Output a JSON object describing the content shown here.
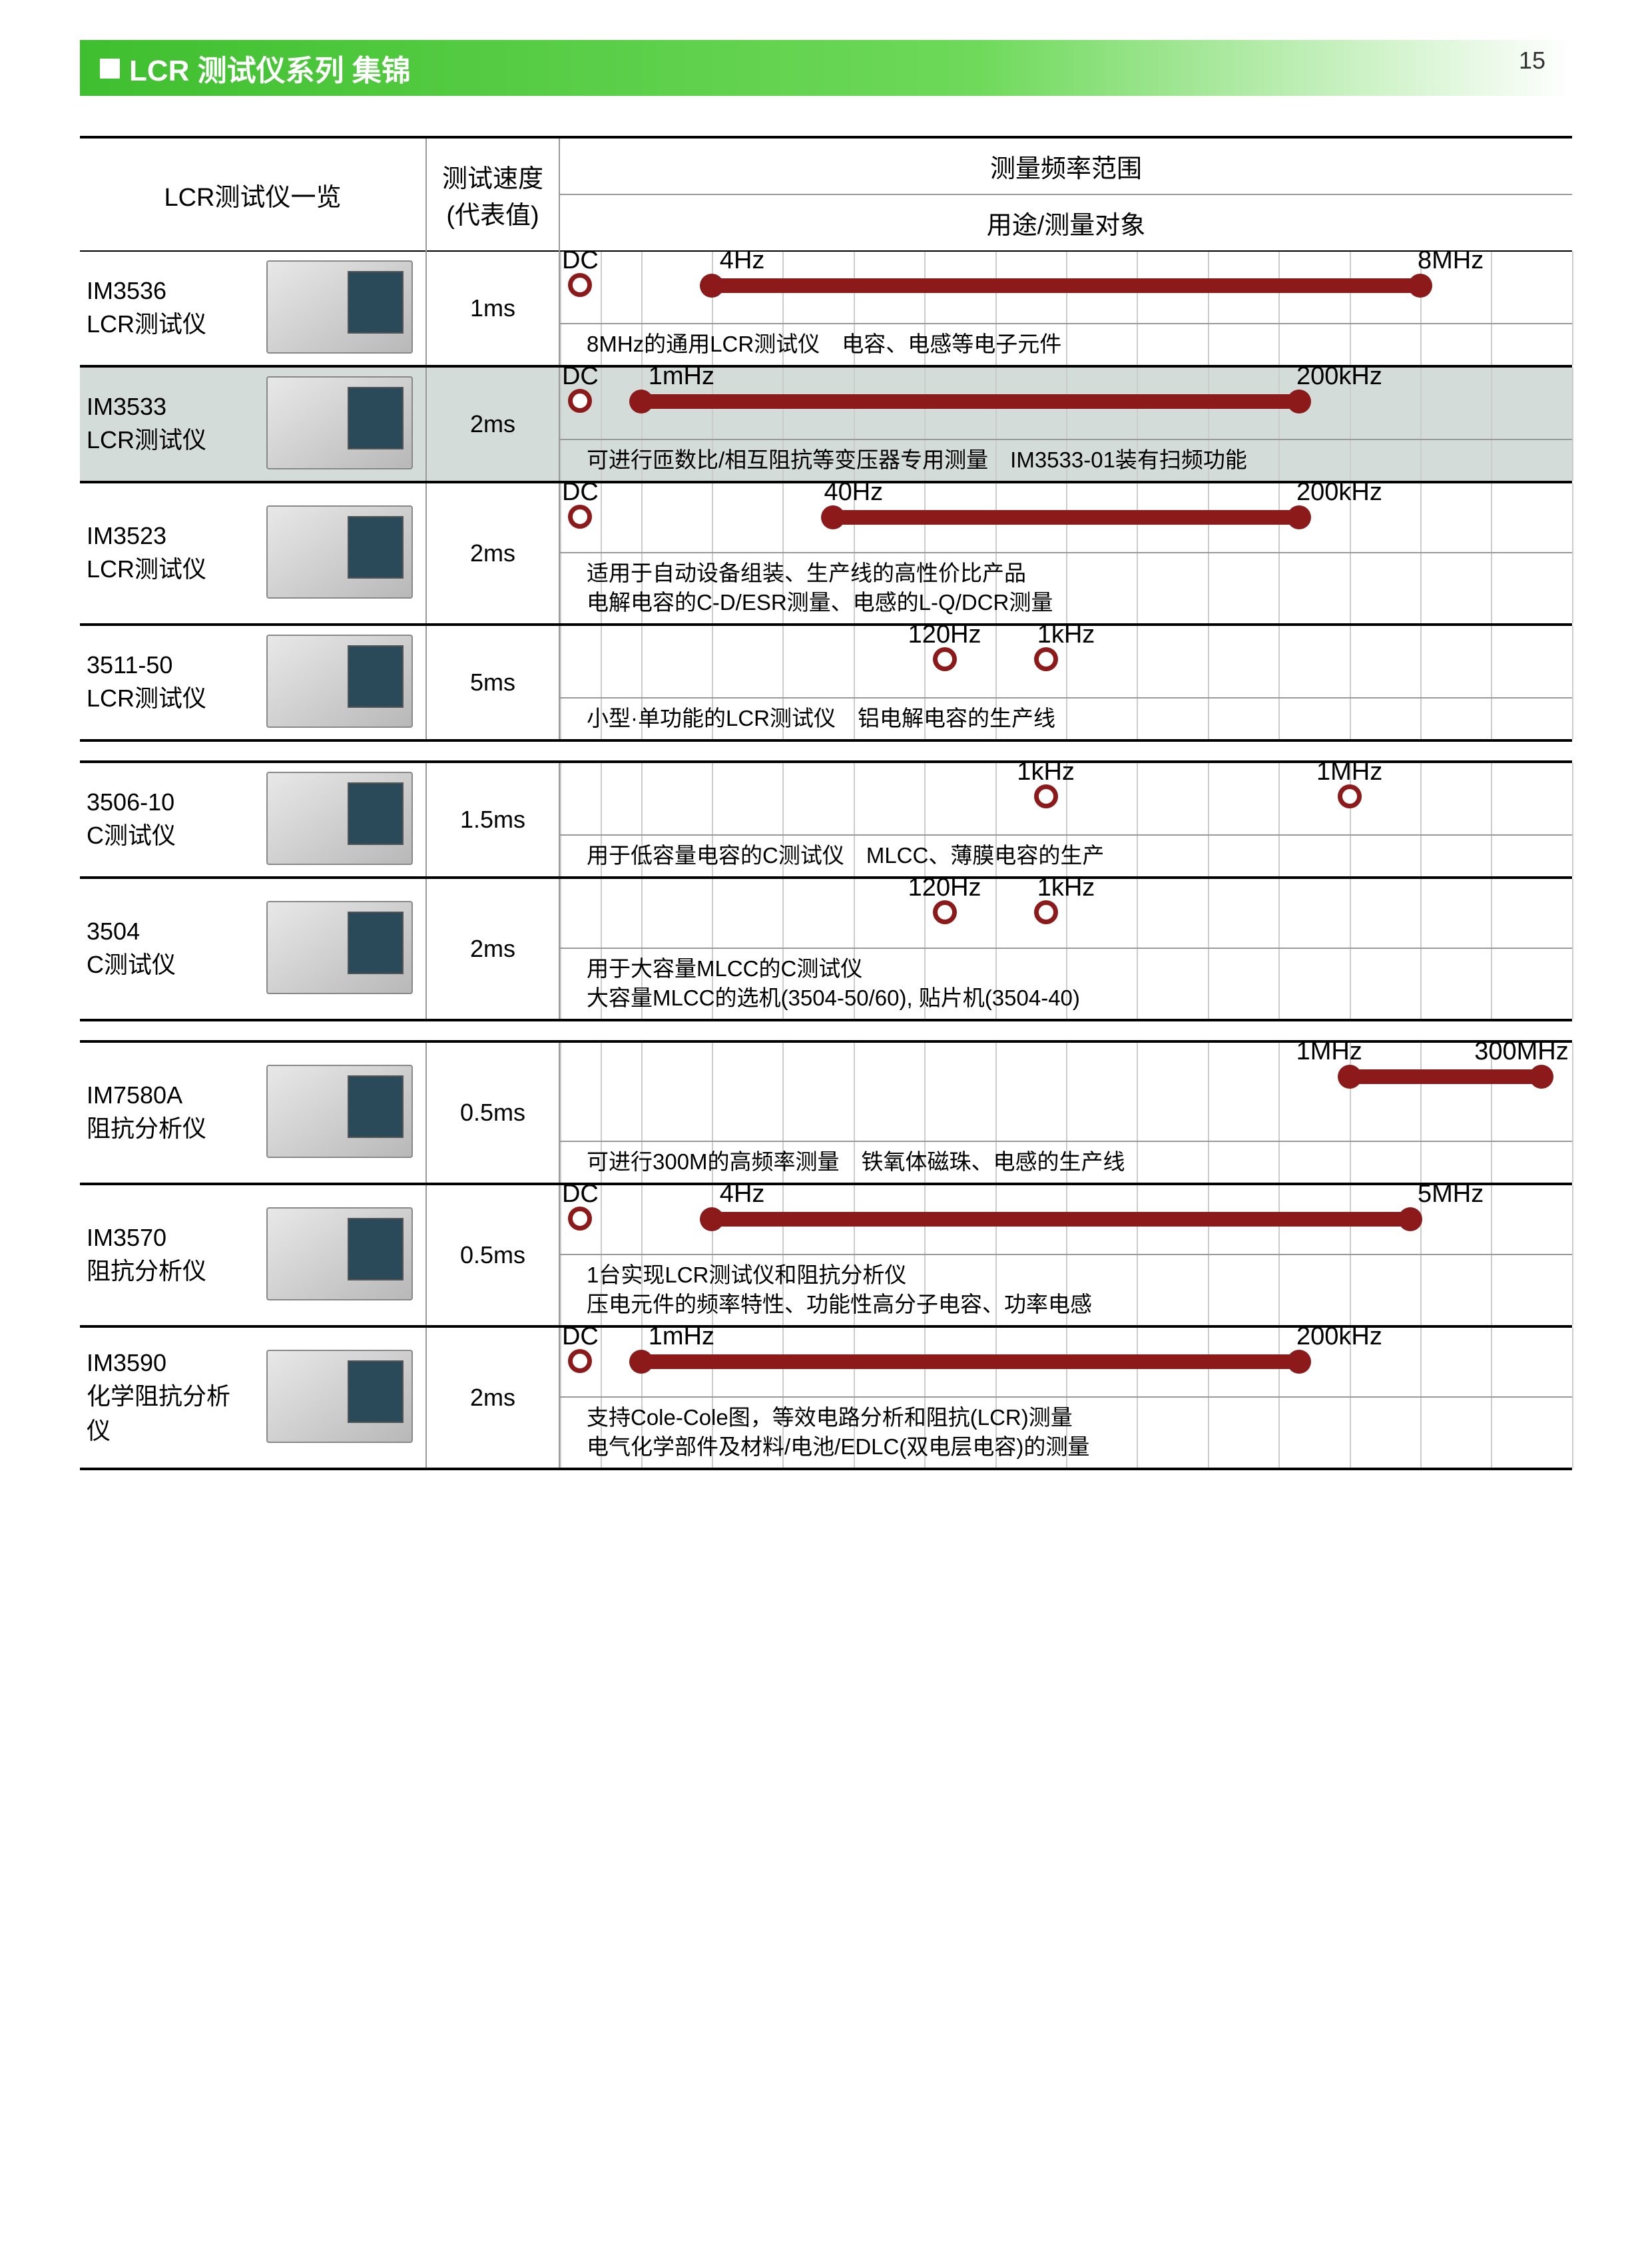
{
  "page_number": "15",
  "title": "LCR 测试仪系列 集锦",
  "header": {
    "col_lineup": "LCR测试仪一览",
    "col_speed_l1": "测试速度",
    "col_speed_l2": "(代表值)",
    "col_range": "测量频率范围",
    "col_usage": "用途/测量对象"
  },
  "grid": {
    "line_pct": [
      0,
      4,
      8,
      15,
      22,
      29,
      36,
      43,
      50,
      57,
      64,
      71,
      78,
      85,
      92,
      100
    ],
    "color": "#cccccc"
  },
  "bar_color": "#8c1a1a",
  "rows": [
    {
      "section": 0,
      "shade": false,
      "model": "IM3536",
      "model_sub": "LCR测试仪",
      "speed": "1ms",
      "dc": {
        "show": true,
        "x": 2
      },
      "bar": {
        "from": 15,
        "to": 85
      },
      "labels": [
        {
          "text": "DC",
          "x": 2
        },
        {
          "text": "4Hz",
          "x": 18
        },
        {
          "text": "8MHz",
          "x": 88
        }
      ],
      "desc": "8MHz的通用LCR测试仪　电容、电感等电子元件"
    },
    {
      "section": 0,
      "shade": true,
      "model": "IM3533",
      "model_sub": "LCR测试仪",
      "speed": "2ms",
      "dc": {
        "show": true,
        "x": 2
      },
      "bar": {
        "from": 8,
        "to": 73
      },
      "labels": [
        {
          "text": "DC",
          "x": 2
        },
        {
          "text": "1mHz",
          "x": 12
        },
        {
          "text": "200kHz",
          "x": 77
        }
      ],
      "desc": "可进行匝数比/相互阻抗等变压器专用测量　IM3533-01装有扫频功能"
    },
    {
      "section": 0,
      "shade": false,
      "tall": true,
      "model": "IM3523",
      "model_sub": "LCR测试仪",
      "speed": "2ms",
      "dc": {
        "show": true,
        "x": 2
      },
      "bar": {
        "from": 27,
        "to": 73
      },
      "labels": [
        {
          "text": "DC",
          "x": 2
        },
        {
          "text": "40Hz",
          "x": 29
        },
        {
          "text": "200kHz",
          "x": 77
        }
      ],
      "desc": "适用于自动设备组装、生产线的高性价比产品\n电解电容的C-D/ESR测量、电感的L-Q/DCR测量"
    },
    {
      "section": 0,
      "shade": false,
      "model": "3511-50",
      "model_sub": "LCR测试仪",
      "speed": "5ms",
      "dots": [
        {
          "x": 38
        },
        {
          "x": 48
        }
      ],
      "labels": [
        {
          "text": "120Hz",
          "x": 38
        },
        {
          "text": "1kHz",
          "x": 50
        }
      ],
      "desc": "小型·单功能的LCR测试仪　铝电解电容的生产线"
    },
    {
      "section": 1,
      "shade": false,
      "model": "3506-10",
      "model_sub": "C测试仪",
      "speed": "1.5ms",
      "dots": [
        {
          "x": 48
        },
        {
          "x": 78
        }
      ],
      "labels": [
        {
          "text": "1kHz",
          "x": 48
        },
        {
          "text": "1MHz",
          "x": 78
        }
      ],
      "desc": "用于低容量电容的C测试仪　MLCC、薄膜电容的生产"
    },
    {
      "section": 1,
      "shade": false,
      "tall": true,
      "model": "3504",
      "model_sub": "C测试仪",
      "speed": "2ms",
      "dots": [
        {
          "x": 38
        },
        {
          "x": 48
        }
      ],
      "labels": [
        {
          "text": "120Hz",
          "x": 38
        },
        {
          "text": "1kHz",
          "x": 50
        }
      ],
      "desc": "用于大容量MLCC的C测试仪\n大容量MLCC的选机(3504-50/60), 贴片机(3504-40)"
    },
    {
      "section": 2,
      "shade": false,
      "tall": true,
      "model": "IM7580A",
      "model_sub": "阻抗分析仪",
      "speed": "0.5ms",
      "bar": {
        "from": 78,
        "to": 97
      },
      "labels": [
        {
          "text": "1MHz",
          "x": 76
        },
        {
          "text": "300MHz",
          "x": 95
        }
      ],
      "desc": "可进行300M的高频率测量　铁氧体磁珠、电感的生产线"
    },
    {
      "section": 2,
      "shade": false,
      "tall": true,
      "model": "IM3570",
      "model_sub": "阻抗分析仪",
      "speed": "0.5ms",
      "dc": {
        "show": true,
        "x": 2
      },
      "bar": {
        "from": 15,
        "to": 84
      },
      "labels": [
        {
          "text": "DC",
          "x": 2
        },
        {
          "text": "4Hz",
          "x": 18
        },
        {
          "text": "5MHz",
          "x": 88
        }
      ],
      "desc": "1台实现LCR测试仪和阻抗分析仪\n压电元件的频率特性、功能性高分子电容、功率电感"
    },
    {
      "section": 2,
      "shade": false,
      "tall": true,
      "model": "IM3590",
      "model_sub": "化学阻抗分析仪",
      "speed": "2ms",
      "dc": {
        "show": true,
        "x": 2
      },
      "bar": {
        "from": 8,
        "to": 73
      },
      "labels": [
        {
          "text": "DC",
          "x": 2
        },
        {
          "text": "1mHz",
          "x": 12
        },
        {
          "text": "200kHz",
          "x": 77
        }
      ],
      "desc": "支持Cole-Cole图，等效电路分析和阻抗(LCR)测量\n电气化学部件及材料/电池/EDLC(双电层电容)的测量"
    }
  ]
}
